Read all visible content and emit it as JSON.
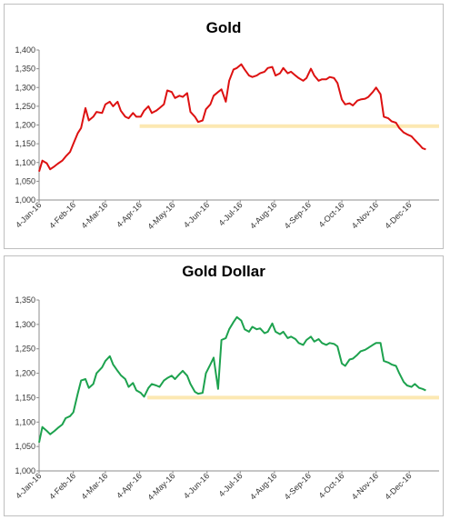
{
  "chart_data": [
    {
      "type": "line",
      "title": "Gold",
      "color": "#dd1111",
      "reference_color": "#fce8b2",
      "ylim": [
        1000,
        1400
      ],
      "yticks": [
        "1,000",
        "1,050",
        "1,100",
        "1,150",
        "1,200",
        "1,250",
        "1,300",
        "1,350",
        "1,400"
      ],
      "xticks": [
        "4-Jan-16",
        "4-Feb-16",
        "4-Mar-16",
        "4-Apr-16",
        "4-May-16",
        "4-Jun-16",
        "4-Jul-16",
        "4-Aug-16",
        "4-Sep-16",
        "4-Oct-16",
        "4-Nov-16",
        "4-Dec-16"
      ],
      "reference_line": {
        "value": 1197,
        "from": "2016-04-04",
        "to": "2016-12-31"
      },
      "series": [
        {
          "x": [
            "2016-01-04",
            "2016-01-07",
            "2016-01-11",
            "2016-01-14",
            "2016-01-18",
            "2016-01-21",
            "2016-01-25",
            "2016-01-28",
            "2016-02-01",
            "2016-02-04",
            "2016-02-08",
            "2016-02-11",
            "2016-02-15",
            "2016-02-18",
            "2016-02-22",
            "2016-02-25",
            "2016-03-01",
            "2016-03-04",
            "2016-03-08",
            "2016-03-11",
            "2016-03-15",
            "2016-03-18",
            "2016-03-22",
            "2016-03-25",
            "2016-03-29",
            "2016-04-01",
            "2016-04-05",
            "2016-04-08",
            "2016-04-12",
            "2016-04-15",
            "2016-04-19",
            "2016-04-22",
            "2016-04-26",
            "2016-04-29",
            "2016-05-03",
            "2016-05-06",
            "2016-05-10",
            "2016-05-13",
            "2016-05-17",
            "2016-05-20",
            "2016-05-24",
            "2016-05-27",
            "2016-05-31",
            "2016-06-03",
            "2016-06-07",
            "2016-06-10",
            "2016-06-14",
            "2016-06-17",
            "2016-06-21",
            "2016-06-24",
            "2016-06-28",
            "2016-07-01",
            "2016-07-05",
            "2016-07-08",
            "2016-07-12",
            "2016-07-15",
            "2016-07-19",
            "2016-07-22",
            "2016-07-26",
            "2016-07-29",
            "2016-08-02",
            "2016-08-05",
            "2016-08-09",
            "2016-08-12",
            "2016-08-16",
            "2016-08-19",
            "2016-08-23",
            "2016-08-26",
            "2016-08-30",
            "2016-09-02",
            "2016-09-06",
            "2016-09-09",
            "2016-09-13",
            "2016-09-16",
            "2016-09-20",
            "2016-09-23",
            "2016-09-27",
            "2016-09-30",
            "2016-10-04",
            "2016-10-07",
            "2016-10-11",
            "2016-10-14",
            "2016-10-18",
            "2016-10-21",
            "2016-10-25",
            "2016-10-28",
            "2016-11-01",
            "2016-11-04",
            "2016-11-08",
            "2016-11-11",
            "2016-11-15",
            "2016-11-18",
            "2016-11-22",
            "2016-11-25",
            "2016-11-29",
            "2016-12-02",
            "2016-12-06",
            "2016-12-09",
            "2016-12-13",
            "2016-12-16",
            "2016-12-19"
          ],
          "y": [
            1076,
            1105,
            1098,
            1082,
            1090,
            1097,
            1105,
            1116,
            1128,
            1150,
            1178,
            1192,
            1245,
            1212,
            1222,
            1235,
            1232,
            1255,
            1262,
            1250,
            1262,
            1238,
            1222,
            1218,
            1232,
            1222,
            1222,
            1238,
            1250,
            1232,
            1238,
            1245,
            1255,
            1292,
            1288,
            1272,
            1278,
            1275,
            1285,
            1235,
            1222,
            1208,
            1212,
            1242,
            1255,
            1278,
            1288,
            1295,
            1262,
            1318,
            1348,
            1352,
            1362,
            1348,
            1332,
            1328,
            1332,
            1338,
            1342,
            1352,
            1355,
            1332,
            1338,
            1352,
            1338,
            1342,
            1332,
            1325,
            1318,
            1325,
            1350,
            1332,
            1318,
            1322,
            1322,
            1328,
            1325,
            1312,
            1268,
            1255,
            1258,
            1252,
            1265,
            1268,
            1270,
            1275,
            1288,
            1300,
            1282,
            1222,
            1218,
            1210,
            1206,
            1192,
            1180,
            1175,
            1170,
            1160,
            1148,
            1138,
            1135
          ]
        }
      ]
    },
    {
      "type": "line",
      "title": "Gold Dollar",
      "color": "#1da24e",
      "reference_color": "#fce8b2",
      "ylim": [
        1000,
        1350
      ],
      "yticks": [
        "1,000",
        "1,050",
        "1,100",
        "1,150",
        "1,200",
        "1,250",
        "1,300",
        "1,350"
      ],
      "xticks": [
        "4-Jan-16",
        "4-Feb-16",
        "4-Mar-16",
        "4-Apr-16",
        "4-May-16",
        "4-Jun-16",
        "4-Jul-16",
        "4-Aug-16",
        "4-Sep-16",
        "4-Oct-16",
        "4-Nov-16",
        "4-Dec-16"
      ],
      "reference_line": {
        "value": 1150,
        "from": "2016-04-11",
        "to": "2016-12-31"
      },
      "series": [
        {
          "x": [
            "2016-01-04",
            "2016-01-07",
            "2016-01-11",
            "2016-01-14",
            "2016-01-18",
            "2016-01-21",
            "2016-01-25",
            "2016-01-28",
            "2016-02-01",
            "2016-02-04",
            "2016-02-08",
            "2016-02-11",
            "2016-02-15",
            "2016-02-18",
            "2016-02-22",
            "2016-02-25",
            "2016-03-01",
            "2016-03-04",
            "2016-03-08",
            "2016-03-11",
            "2016-03-15",
            "2016-03-18",
            "2016-03-22",
            "2016-03-25",
            "2016-03-29",
            "2016-04-01",
            "2016-04-05",
            "2016-04-08",
            "2016-04-12",
            "2016-04-15",
            "2016-04-19",
            "2016-04-22",
            "2016-04-26",
            "2016-04-29",
            "2016-05-03",
            "2016-05-06",
            "2016-05-10",
            "2016-05-13",
            "2016-05-17",
            "2016-05-20",
            "2016-05-24",
            "2016-05-27",
            "2016-05-31",
            "2016-06-03",
            "2016-06-07",
            "2016-06-10",
            "2016-06-14",
            "2016-06-17",
            "2016-06-21",
            "2016-06-24",
            "2016-06-28",
            "2016-07-01",
            "2016-07-05",
            "2016-07-08",
            "2016-07-12",
            "2016-07-15",
            "2016-07-19",
            "2016-07-22",
            "2016-07-26",
            "2016-07-29",
            "2016-08-02",
            "2016-08-05",
            "2016-08-09",
            "2016-08-12",
            "2016-08-16",
            "2016-08-19",
            "2016-08-23",
            "2016-08-26",
            "2016-08-30",
            "2016-09-02",
            "2016-09-06",
            "2016-09-09",
            "2016-09-13",
            "2016-09-16",
            "2016-09-20",
            "2016-09-23",
            "2016-09-27",
            "2016-09-30",
            "2016-10-04",
            "2016-10-07",
            "2016-10-11",
            "2016-10-14",
            "2016-10-18",
            "2016-10-21",
            "2016-10-25",
            "2016-10-28",
            "2016-11-01",
            "2016-11-04",
            "2016-11-08",
            "2016-11-11",
            "2016-11-15",
            "2016-11-18",
            "2016-11-22",
            "2016-11-25",
            "2016-11-29",
            "2016-12-02",
            "2016-12-06",
            "2016-12-09",
            "2016-12-13",
            "2016-12-16",
            "2016-12-19"
          ],
          "y": [
            1058,
            1090,
            1082,
            1075,
            1082,
            1088,
            1095,
            1108,
            1112,
            1120,
            1158,
            1185,
            1188,
            1170,
            1178,
            1200,
            1212,
            1225,
            1235,
            1218,
            1205,
            1196,
            1188,
            1172,
            1180,
            1165,
            1160,
            1152,
            1170,
            1178,
            1175,
            1172,
            1185,
            1190,
            1195,
            1188,
            1198,
            1205,
            1195,
            1178,
            1162,
            1158,
            1160,
            1200,
            1218,
            1232,
            1168,
            1268,
            1272,
            1290,
            1305,
            1315,
            1308,
            1290,
            1285,
            1295,
            1290,
            1292,
            1282,
            1285,
            1302,
            1285,
            1280,
            1285,
            1272,
            1275,
            1270,
            1262,
            1258,
            1268,
            1275,
            1265,
            1270,
            1262,
            1258,
            1262,
            1260,
            1255,
            1220,
            1215,
            1228,
            1230,
            1238,
            1245,
            1248,
            1252,
            1258,
            1262,
            1262,
            1225,
            1222,
            1218,
            1215,
            1200,
            1182,
            1175,
            1172,
            1178,
            1170,
            1168,
            1165
          ]
        }
      ]
    }
  ]
}
